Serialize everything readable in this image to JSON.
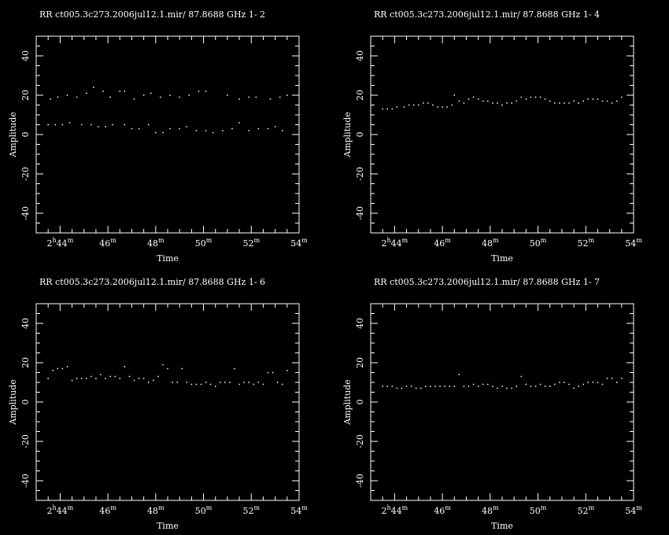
{
  "window": {
    "background": "#000000",
    "foreground": "#ffffff"
  },
  "chart_data": [
    {
      "type": "scatter",
      "title": "RR   ct005.3c273.2006jul12.1.mir/ 87.8688 GHz    1-  2",
      "xlabel": "Time",
      "ylabel": "Amplitude",
      "xlim": [
        "2h43.0m",
        "2h54.0m"
      ],
      "ylim": [
        -50,
        50
      ],
      "xticks": [
        "2h44m",
        "46m",
        "48m",
        "50m",
        "52m",
        "54m"
      ],
      "yticks": [
        "-40",
        "-20",
        "0",
        "20",
        "40"
      ],
      "series": [
        {
          "x": [
            "2h43.6m",
            "2h43.9m",
            "2h44.3m",
            "2h44.7m",
            "2h45.1m",
            "2h45.4m",
            "2h45.8m",
            "2h46.1m",
            "2h46.5m",
            "2h46.7m",
            "2h47.1m",
            "2h47.5m",
            "2h47.8m",
            "2h48.2m",
            "2h48.6m",
            "2h49.0m",
            "2h49.4m",
            "2h49.8m",
            "2h50.1m",
            "2h51.0m",
            "2h51.5m",
            "2h51.9m",
            "2h52.2m",
            "2h52.8m",
            "2h53.2m",
            "2h53.5m"
          ],
          "y": [
            18,
            19,
            20,
            19,
            21,
            24,
            22,
            19,
            22,
            22,
            18,
            20,
            21,
            19,
            20,
            19,
            20,
            22,
            22,
            20,
            18,
            19,
            19,
            18,
            19,
            20
          ]
        },
        {
          "x": [
            "2h43.5m",
            "2h43.8m",
            "2h44.1m",
            "2h44.4m",
            "2h44.9m",
            "2h45.3m",
            "2h45.6m",
            "2h45.9m",
            "2h46.2m",
            "2h46.7m",
            "2h47.0m",
            "2h47.3m",
            "2h47.7m",
            "2h48.0m",
            "2h48.3m",
            "2h48.6m",
            "2h49.0m",
            "2h49.3m",
            "2h49.7m",
            "2h50.1m",
            "2h50.4m",
            "2h50.8m",
            "2h51.2m",
            "2h51.5m",
            "2h51.9m",
            "2h52.3m",
            "2h52.7m",
            "2h53.0m",
            "2h53.3m"
          ],
          "y": [
            5,
            5,
            5,
            6,
            5,
            5,
            4,
            4,
            5,
            5,
            3,
            3,
            5,
            1,
            1,
            3,
            3,
            4,
            2,
            2,
            1,
            2,
            3,
            6,
            2,
            3,
            3,
            4,
            2
          ]
        }
      ]
    },
    {
      "type": "scatter",
      "title": "RR   ct005.3c273.2006jul12.1.mir/ 87.8688 GHz    1-  4",
      "xlabel": "Time",
      "ylabel": "Amplitude",
      "xlim": [
        "2h43.0m",
        "2h54.0m"
      ],
      "ylim": [
        -50,
        50
      ],
      "xticks": [
        "2h44m",
        "46m",
        "48m",
        "50m",
        "52m",
        "54m"
      ],
      "yticks": [
        "-40",
        "-20",
        "0",
        "20",
        "40"
      ],
      "series": [
        {
          "x": [
            "2h43.5m",
            "2h43.7m",
            "2h43.9m",
            "2h44.1m",
            "2h44.4m",
            "2h44.6m",
            "2h44.8m",
            "2h45.0m",
            "2h45.2m",
            "2h45.4m",
            "2h45.6m",
            "2h45.8m",
            "2h46.0m",
            "2h46.2m",
            "2h46.4m",
            "2h46.5m",
            "2h46.7m",
            "2h46.9m",
            "2h47.1m",
            "2h47.3m",
            "2h47.5m",
            "2h47.7m",
            "2h47.9m",
            "2h48.1m",
            "2h48.3m",
            "2h48.5m",
            "2h48.7m",
            "2h48.9m",
            "2h49.1m",
            "2h49.3m",
            "2h49.5m",
            "2h49.7m",
            "2h49.9m",
            "2h50.1m",
            "2h50.3m",
            "2h50.5m",
            "2h50.7m",
            "2h50.9m",
            "2h51.1m",
            "2h51.3m",
            "2h51.5m",
            "2h51.7m",
            "2h51.9m",
            "2h52.1m",
            "2h52.3m",
            "2h52.5m",
            "2h52.7m",
            "2h52.9m",
            "2h53.1m",
            "2h53.3m",
            "2h53.5m"
          ],
          "y": [
            13,
            13,
            13,
            14,
            14,
            15,
            15,
            15,
            16,
            16,
            15,
            14,
            14,
            14,
            15,
            20,
            17,
            16,
            18,
            19,
            18,
            17,
            17,
            16,
            16,
            15,
            16,
            16,
            17,
            19,
            18,
            19,
            19,
            19,
            18,
            17,
            16,
            16,
            16,
            16,
            17,
            16,
            17,
            18,
            18,
            18,
            17,
            17,
            16,
            17,
            19
          ]
        }
      ]
    },
    {
      "type": "scatter",
      "title": "RR   ct005.3c273.2006jul12.1.mir/ 87.8688 GHz    1-  6",
      "xlabel": "Time",
      "ylabel": "Amplitude",
      "xlim": [
        "2h43.0m",
        "2h54.0m"
      ],
      "ylim": [
        -50,
        50
      ],
      "xticks": [
        "2h44m",
        "46m",
        "48m",
        "50m",
        "52m",
        "54m"
      ],
      "yticks": [
        "-40",
        "-20",
        "0",
        "20",
        "40"
      ],
      "series": [
        {
          "x": [
            "2h43.5m",
            "2h43.7m",
            "2h43.9m",
            "2h44.1m",
            "2h44.3m",
            "2h44.5m",
            "2h44.7m",
            "2h44.9m",
            "2h45.1m",
            "2h45.3m",
            "2h45.5m",
            "2h45.7m",
            "2h45.9m",
            "2h46.1m",
            "2h46.3m",
            "2h46.5m",
            "2h46.7m",
            "2h46.9m",
            "2h47.1m",
            "2h47.3m",
            "2h47.5m",
            "2h47.7m",
            "2h47.9m",
            "2h48.1m",
            "2h48.3m",
            "2h48.5m",
            "2h48.7m",
            "2h48.9m",
            "2h49.1m",
            "2h49.3m",
            "2h49.5m",
            "2h49.7m",
            "2h49.9m",
            "2h50.1m",
            "2h50.3m",
            "2h50.5m",
            "2h50.7m",
            "2h50.9m",
            "2h51.1m",
            "2h51.3m",
            "2h51.5m",
            "2h51.7m",
            "2h51.9m",
            "2h52.1m",
            "2h52.3m",
            "2h52.5m",
            "2h52.7m",
            "2h52.9m",
            "2h53.1m",
            "2h53.3m",
            "2h53.5m"
          ],
          "y": [
            12,
            16,
            17,
            17,
            18,
            11,
            12,
            12,
            12,
            13,
            12,
            14,
            12,
            13,
            13,
            12,
            18,
            13,
            11,
            12,
            12,
            10,
            11,
            13,
            19,
            17,
            10,
            10,
            17,
            10,
            9,
            9,
            9,
            10,
            9,
            8,
            10,
            10,
            10,
            17,
            9,
            10,
            10,
            9,
            10,
            9,
            15,
            15,
            10,
            9,
            16
          ]
        }
      ]
    },
    {
      "type": "scatter",
      "title": "RR   ct005.3c273.2006jul12.1.mir/ 87.8688 GHz    1-  7",
      "xlabel": "Time",
      "ylabel": "Amplitude",
      "xlim": [
        "2h43.0m",
        "2h54.0m"
      ],
      "ylim": [
        -50,
        50
      ],
      "xticks": [
        "2h44m",
        "46m",
        "48m",
        "50m",
        "52m",
        "54m"
      ],
      "yticks": [
        "-40",
        "-20",
        "0",
        "20",
        "40"
      ],
      "series": [
        {
          "x": [
            "2h43.5m",
            "2h43.7m",
            "2h43.9m",
            "2h44.1m",
            "2h44.3m",
            "2h44.5m",
            "2h44.7m",
            "2h44.9m",
            "2h45.1m",
            "2h45.3m",
            "2h45.5m",
            "2h45.7m",
            "2h45.9m",
            "2h46.1m",
            "2h46.3m",
            "2h46.5m",
            "2h46.7m",
            "2h46.9m",
            "2h47.1m",
            "2h47.3m",
            "2h47.5m",
            "2h47.7m",
            "2h47.9m",
            "2h48.1m",
            "2h48.3m",
            "2h48.5m",
            "2h48.7m",
            "2h48.9m",
            "2h49.1m",
            "2h49.3m",
            "2h49.5m",
            "2h49.7m",
            "2h49.9m",
            "2h50.1m",
            "2h50.3m",
            "2h50.5m",
            "2h50.7m",
            "2h50.9m",
            "2h51.1m",
            "2h51.3m",
            "2h51.5m",
            "2h51.7m",
            "2h51.9m",
            "2h52.1m",
            "2h52.3m",
            "2h52.5m",
            "2h52.7m",
            "2h52.9m",
            "2h53.1m",
            "2h53.3m",
            "2h53.5m"
          ],
          "y": [
            8,
            8,
            8,
            7,
            7,
            8,
            8,
            7,
            7,
            8,
            8,
            8,
            8,
            8,
            8,
            8,
            14,
            8,
            8,
            9,
            8,
            9,
            9,
            8,
            7,
            8,
            7,
            7,
            8,
            13,
            9,
            8,
            8,
            9,
            8,
            8,
            9,
            10,
            10,
            9,
            7,
            8,
            9,
            10,
            10,
            10,
            9,
            12,
            12,
            10,
            12
          ]
        }
      ]
    }
  ]
}
